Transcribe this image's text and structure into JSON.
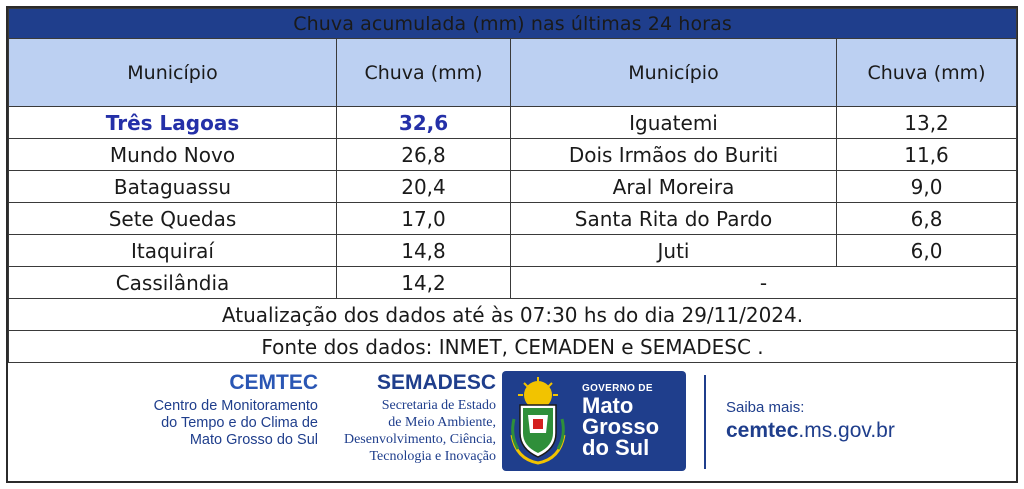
{
  "title": "Chuva acumulada (mm) nas últimas 24 horas",
  "headers": {
    "municipio_left": "Município",
    "chuva_left": "Chuva (mm)",
    "municipio_right": "Município",
    "chuva_right": "Chuva (mm)"
  },
  "rows": [
    {
      "left_city": "Três Lagoas",
      "left_value": "32,6",
      "right_city": "Iguatemi",
      "right_value": "13,2"
    },
    {
      "left_city": "Mundo Novo",
      "left_value": "26,8",
      "right_city": "Dois Irmãos do Buriti",
      "right_value": "11,6"
    },
    {
      "left_city": "Bataguassu",
      "left_value": "20,4",
      "right_city": "Aral Moreira",
      "right_value": "9,0"
    },
    {
      "left_city": "Sete Quedas",
      "left_value": "17,0",
      "right_city": "Santa Rita do Pardo",
      "right_value": "6,8"
    },
    {
      "left_city": "Itaquiraí",
      "left_value": "14,8",
      "right_city": "Juti",
      "right_value": "6,0"
    },
    {
      "left_city": "Cassilândia",
      "left_value": "14,2",
      "right_merged": "-"
    }
  ],
  "update_note": "Atualização dos dados até às 07:30 hs do dia 29/11/2024.",
  "source_note": "Fonte dos dados: INMET, CEMADEN e SEMADESC .",
  "footer": {
    "cemtec": {
      "name": "CEMTEC",
      "desc_lines": [
        "Centro de Monitoramento",
        "do Tempo e do Clima de",
        "Mato Grosso do Sul"
      ]
    },
    "semadesc": {
      "name": "SEMADESC",
      "desc_lines": [
        "Secretaria de Estado",
        "de Meio Ambiente,",
        "Desenvolvimento, Ciência,",
        "Tecnologia e Inovação"
      ]
    },
    "gov": {
      "small": "GOVERNO DE",
      "big_lines": [
        "Mato",
        "Grosso",
        "do Sul"
      ]
    },
    "saiba": "Saiba mais:",
    "site_bold": "cemtec",
    "site_rest": ".ms.gov.br"
  },
  "colors": {
    "title_bg": "#1f3e8c",
    "header_bg": "#bcd0f2",
    "highlight_text": "#2430a8"
  }
}
